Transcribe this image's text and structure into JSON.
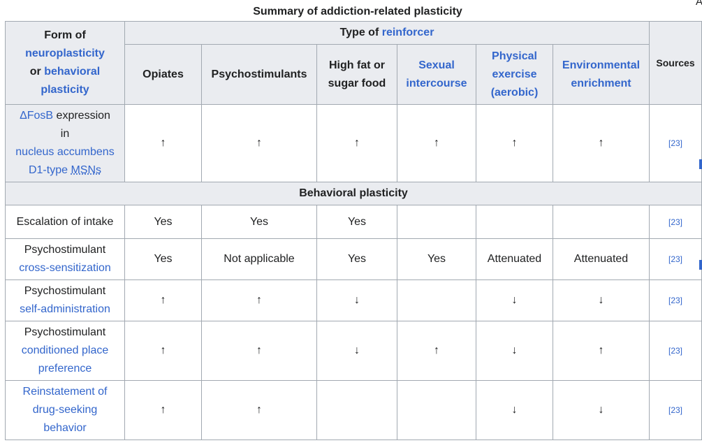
{
  "caption": "Summary of addiction-related plasticity",
  "corner_glyph": "A",
  "header": {
    "form_col": {
      "prefix": "Form of",
      "link1": "neuroplasticity",
      "mid": "or",
      "link2": "behavioral plasticity"
    },
    "type_of": {
      "prefix": "Type of",
      "link": "reinforcer"
    },
    "columns": {
      "opiates": "Opiates",
      "psychostimulants": "Psychostimulants",
      "high_fat_1": "High fat or",
      "high_fat_2": "sugar food",
      "sexual_1": "Sexual",
      "sexual_2": "intercourse",
      "exercise_1": "Physical",
      "exercise_2": "exercise",
      "exercise_3": "(aerobic)",
      "enrich_1": "Environmental",
      "enrich_2": "enrichment"
    },
    "sources": "Sources"
  },
  "row_fosb": {
    "label_link1": "ΔFosB",
    "label_text1": "expression",
    "label_text2": "in",
    "label_link2": "nucleus accumbens",
    "label_text3": "D1-type",
    "label_link3": "MSNs",
    "cells": [
      "↑",
      "↑",
      "↑",
      "↑",
      "↑",
      "↑"
    ],
    "ref": "[23]"
  },
  "section_behavioral": "Behavioral plasticity",
  "rows": [
    {
      "label_text": "Escalation of intake",
      "label_link": "",
      "cells": [
        "Yes",
        "Yes",
        "Yes",
        "",
        "",
        ""
      ],
      "ref": "[23]"
    },
    {
      "label_text": "Psychostimulant",
      "label_link": "cross-sensitization",
      "cells": [
        "Yes",
        "Not applicable",
        "Yes",
        "Yes",
        "Attenuated",
        "Attenuated"
      ],
      "ref": "[23]"
    },
    {
      "label_text": "Psychostimulant",
      "label_link": "self-administration",
      "cells": [
        "↑",
        "↑",
        "↓",
        "",
        "↓",
        "↓"
      ],
      "ref": "[23]"
    },
    {
      "label_text": "Psychostimulant",
      "label_link_1": "conditioned place",
      "label_link_2": "preference",
      "cells": [
        "↑",
        "↑",
        "↓",
        "↑",
        "↓",
        "↑"
      ],
      "ref": "[23]"
    },
    {
      "label_link_1": "Reinstatement of",
      "label_link_2": "drug-seeking",
      "label_link_3": "behavior",
      "cells": [
        "↑",
        "↑",
        "",
        "",
        "↓",
        "↓"
      ],
      "ref": "[23]"
    }
  ],
  "colors": {
    "link": "#3366cc",
    "header_bg": "#eaecf0",
    "border": "#a2a9b1",
    "text": "#202122"
  }
}
